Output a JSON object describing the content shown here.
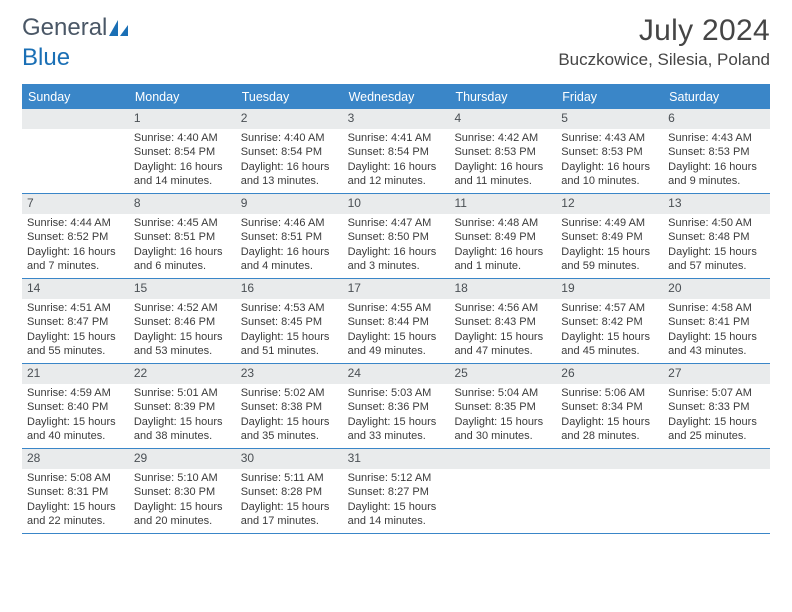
{
  "brand": {
    "part1": "General",
    "part2": "Blue"
  },
  "colors": {
    "accent": "#3a86c8",
    "headerbg": "#e9ebec",
    "text": "#3b3b3b"
  },
  "title": "July 2024",
  "location": "Buczkowice, Silesia, Poland",
  "dayNames": [
    "Sunday",
    "Monday",
    "Tuesday",
    "Wednesday",
    "Thursday",
    "Friday",
    "Saturday"
  ],
  "startOffset": 1,
  "days": [
    {
      "n": "1",
      "sunrise": "4:40 AM",
      "sunset": "8:54 PM",
      "daylight": "16 hours and 14 minutes."
    },
    {
      "n": "2",
      "sunrise": "4:40 AM",
      "sunset": "8:54 PM",
      "daylight": "16 hours and 13 minutes."
    },
    {
      "n": "3",
      "sunrise": "4:41 AM",
      "sunset": "8:54 PM",
      "daylight": "16 hours and 12 minutes."
    },
    {
      "n": "4",
      "sunrise": "4:42 AM",
      "sunset": "8:53 PM",
      "daylight": "16 hours and 11 minutes."
    },
    {
      "n": "5",
      "sunrise": "4:43 AM",
      "sunset": "8:53 PM",
      "daylight": "16 hours and 10 minutes."
    },
    {
      "n": "6",
      "sunrise": "4:43 AM",
      "sunset": "8:53 PM",
      "daylight": "16 hours and 9 minutes."
    },
    {
      "n": "7",
      "sunrise": "4:44 AM",
      "sunset": "8:52 PM",
      "daylight": "16 hours and 7 minutes."
    },
    {
      "n": "8",
      "sunrise": "4:45 AM",
      "sunset": "8:51 PM",
      "daylight": "16 hours and 6 minutes."
    },
    {
      "n": "9",
      "sunrise": "4:46 AM",
      "sunset": "8:51 PM",
      "daylight": "16 hours and 4 minutes."
    },
    {
      "n": "10",
      "sunrise": "4:47 AM",
      "sunset": "8:50 PM",
      "daylight": "16 hours and 3 minutes."
    },
    {
      "n": "11",
      "sunrise": "4:48 AM",
      "sunset": "8:49 PM",
      "daylight": "16 hours and 1 minute."
    },
    {
      "n": "12",
      "sunrise": "4:49 AM",
      "sunset": "8:49 PM",
      "daylight": "15 hours and 59 minutes."
    },
    {
      "n": "13",
      "sunrise": "4:50 AM",
      "sunset": "8:48 PM",
      "daylight": "15 hours and 57 minutes."
    },
    {
      "n": "14",
      "sunrise": "4:51 AM",
      "sunset": "8:47 PM",
      "daylight": "15 hours and 55 minutes."
    },
    {
      "n": "15",
      "sunrise": "4:52 AM",
      "sunset": "8:46 PM",
      "daylight": "15 hours and 53 minutes."
    },
    {
      "n": "16",
      "sunrise": "4:53 AM",
      "sunset": "8:45 PM",
      "daylight": "15 hours and 51 minutes."
    },
    {
      "n": "17",
      "sunrise": "4:55 AM",
      "sunset": "8:44 PM",
      "daylight": "15 hours and 49 minutes."
    },
    {
      "n": "18",
      "sunrise": "4:56 AM",
      "sunset": "8:43 PM",
      "daylight": "15 hours and 47 minutes."
    },
    {
      "n": "19",
      "sunrise": "4:57 AM",
      "sunset": "8:42 PM",
      "daylight": "15 hours and 45 minutes."
    },
    {
      "n": "20",
      "sunrise": "4:58 AM",
      "sunset": "8:41 PM",
      "daylight": "15 hours and 43 minutes."
    },
    {
      "n": "21",
      "sunrise": "4:59 AM",
      "sunset": "8:40 PM",
      "daylight": "15 hours and 40 minutes."
    },
    {
      "n": "22",
      "sunrise": "5:01 AM",
      "sunset": "8:39 PM",
      "daylight": "15 hours and 38 minutes."
    },
    {
      "n": "23",
      "sunrise": "5:02 AM",
      "sunset": "8:38 PM",
      "daylight": "15 hours and 35 minutes."
    },
    {
      "n": "24",
      "sunrise": "5:03 AM",
      "sunset": "8:36 PM",
      "daylight": "15 hours and 33 minutes."
    },
    {
      "n": "25",
      "sunrise": "5:04 AM",
      "sunset": "8:35 PM",
      "daylight": "15 hours and 30 minutes."
    },
    {
      "n": "26",
      "sunrise": "5:06 AM",
      "sunset": "8:34 PM",
      "daylight": "15 hours and 28 minutes."
    },
    {
      "n": "27",
      "sunrise": "5:07 AM",
      "sunset": "8:33 PM",
      "daylight": "15 hours and 25 minutes."
    },
    {
      "n": "28",
      "sunrise": "5:08 AM",
      "sunset": "8:31 PM",
      "daylight": "15 hours and 22 minutes."
    },
    {
      "n": "29",
      "sunrise": "5:10 AM",
      "sunset": "8:30 PM",
      "daylight": "15 hours and 20 minutes."
    },
    {
      "n": "30",
      "sunrise": "5:11 AM",
      "sunset": "8:28 PM",
      "daylight": "15 hours and 17 minutes."
    },
    {
      "n": "31",
      "sunrise": "5:12 AM",
      "sunset": "8:27 PM",
      "daylight": "15 hours and 14 minutes."
    }
  ],
  "labels": {
    "sunrise": "Sunrise: ",
    "sunset": "Sunset: ",
    "daylight": "Daylight: "
  }
}
